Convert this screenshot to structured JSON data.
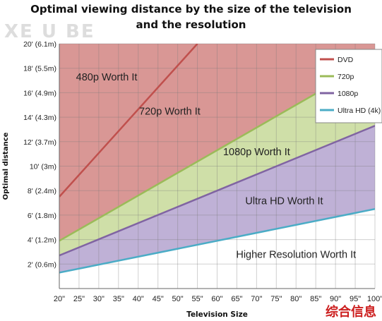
{
  "chart_data": {
    "type": "area",
    "title_lines": [
      "Optimal viewing distance by the size of the television",
      "and the resolution"
    ],
    "xlabel": "Television Size",
    "ylabel": "Optimal distance",
    "x_ticks": [
      "20\"",
      "25\"",
      "30\"",
      "35\"",
      "40\"",
      "45\"",
      "50\"",
      "55\"",
      "60\"",
      "65\"",
      "70\"",
      "75\"",
      "80\"",
      "85\"",
      "90\"",
      "95\"",
      "100\""
    ],
    "x_values": [
      20,
      25,
      30,
      35,
      40,
      45,
      50,
      55,
      60,
      65,
      70,
      75,
      80,
      85,
      90,
      95,
      100
    ],
    "y_ticks": [
      {
        "value": 2,
        "label": "2' (0.6m)"
      },
      {
        "value": 4,
        "label": "4' (1.2m)"
      },
      {
        "value": 6,
        "label": "6' (1.8m)"
      },
      {
        "value": 8,
        "label": "8' (2.4m)"
      },
      {
        "value": 10,
        "label": "10' (3m)"
      },
      {
        "value": 12,
        "label": "12' (3.7m)"
      },
      {
        "value": 14,
        "label": "14' (4.3m)"
      },
      {
        "value": 16,
        "label": "16' (4.9m)"
      },
      {
        "value": 18,
        "label": "18' (5.5m)"
      },
      {
        "value": 20,
        "label": "20' (6.1m)"
      }
    ],
    "xlim": [
      20,
      100
    ],
    "ylim": [
      0,
      20
    ],
    "grid": true,
    "legend_position": "top-right",
    "series": [
      {
        "name": "DVD",
        "color": "#c0504d",
        "fill": "#d99795",
        "x": [
          20,
          55
        ],
        "y": [
          7.5,
          20
        ]
      },
      {
        "name": "720p",
        "color": "#9bbb59",
        "fill": "#cfdfa8",
        "x": [
          20,
          100
        ],
        "y": [
          3.9,
          18.7
        ]
      },
      {
        "name": "1080p",
        "color": "#8064a2",
        "fill": "#bfb1d6",
        "x": [
          20,
          100
        ],
        "y": [
          2.7,
          13.3
        ]
      },
      {
        "name": "Ultra HD (4k)",
        "color": "#4bacc6",
        "fill": "#a6d6e6",
        "x": [
          20,
          100
        ],
        "y": [
          1.3,
          6.5
        ]
      }
    ],
    "region_labels": [
      {
        "text": "480p Worth It",
        "x": 32,
        "y": 17,
        "fill_beyond": "#d99795"
      },
      {
        "text": "720p Worth It",
        "x": 48,
        "y": 14.2
      },
      {
        "text": "1080p Worth It",
        "x": 70,
        "y": 10.9
      },
      {
        "text": "Ultra HD Worth It",
        "x": 77,
        "y": 6.9
      },
      {
        "text": "Higher Resolution Worth It",
        "x": 80,
        "y": 2.5
      }
    ]
  },
  "watermarks": {
    "logo": "XE U BE",
    "corner": "综合信息"
  }
}
